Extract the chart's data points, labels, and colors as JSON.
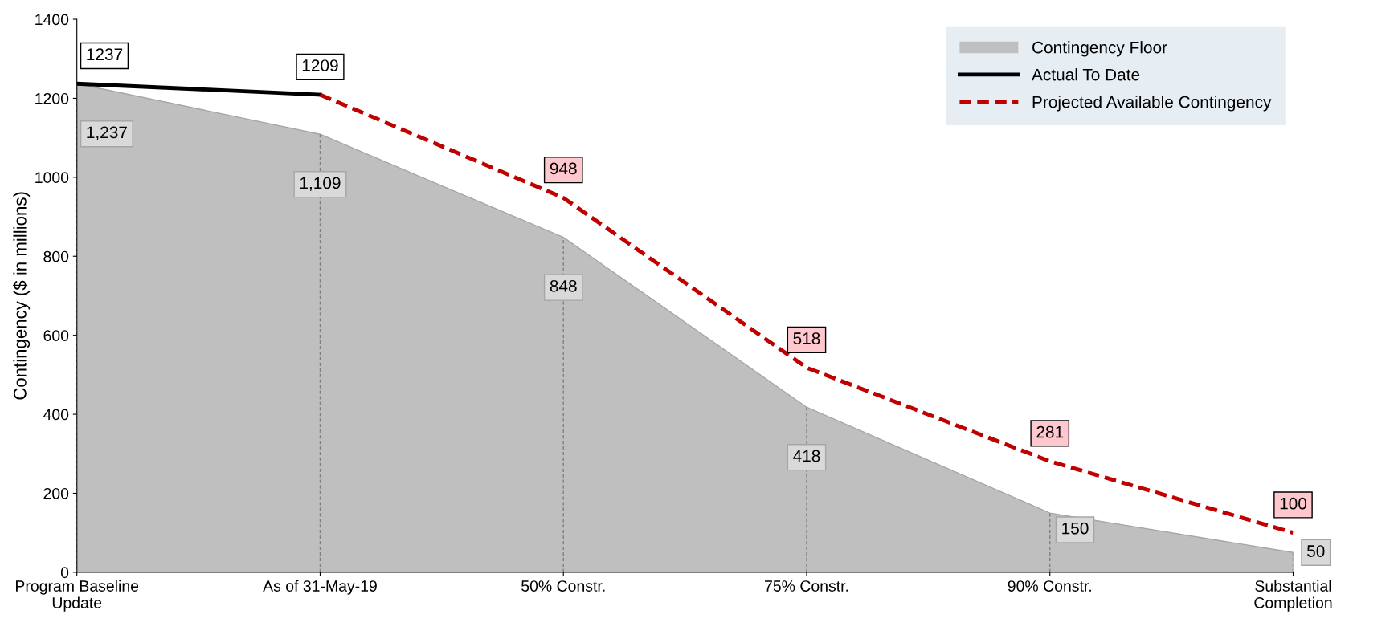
{
  "chart_data": {
    "type": "area",
    "ylabel": "Contingency ($ in millions)",
    "categories": [
      "Program Baseline\nUpdate",
      "As of 31-May-19",
      "50% Constr.",
      "75% Constr.",
      "90% Constr.",
      "Substantial\nCompletion"
    ],
    "ylim": [
      0,
      1400
    ],
    "yticks": [
      0,
      200,
      400,
      600,
      800,
      1000,
      1200,
      1400
    ],
    "grid": "x",
    "legend": "top right",
    "series": [
      {
        "name": "Contingency Floor",
        "color": "#bfbfbf",
        "values": [
          1237,
          1109,
          848,
          418,
          150,
          50
        ],
        "value_labels": [
          "1,237",
          "1,109",
          "848",
          "418",
          "150",
          "50"
        ]
      },
      {
        "name": "Actual To Date",
        "type": "line",
        "color": "#000000",
        "line_style": "solid",
        "values": [
          1237,
          1209,
          null,
          null,
          null,
          null
        ],
        "value_labels": [
          "1237",
          "1209",
          null,
          null,
          null,
          null
        ]
      },
      {
        "name": "Projected Available Contingency",
        "type": "line",
        "color": "#c00000",
        "line_style": "dashed",
        "values": [
          null,
          1209,
          948,
          518,
          281,
          100
        ],
        "value_labels": [
          null,
          null,
          "948",
          "518",
          "281",
          "100"
        ]
      }
    ]
  }
}
